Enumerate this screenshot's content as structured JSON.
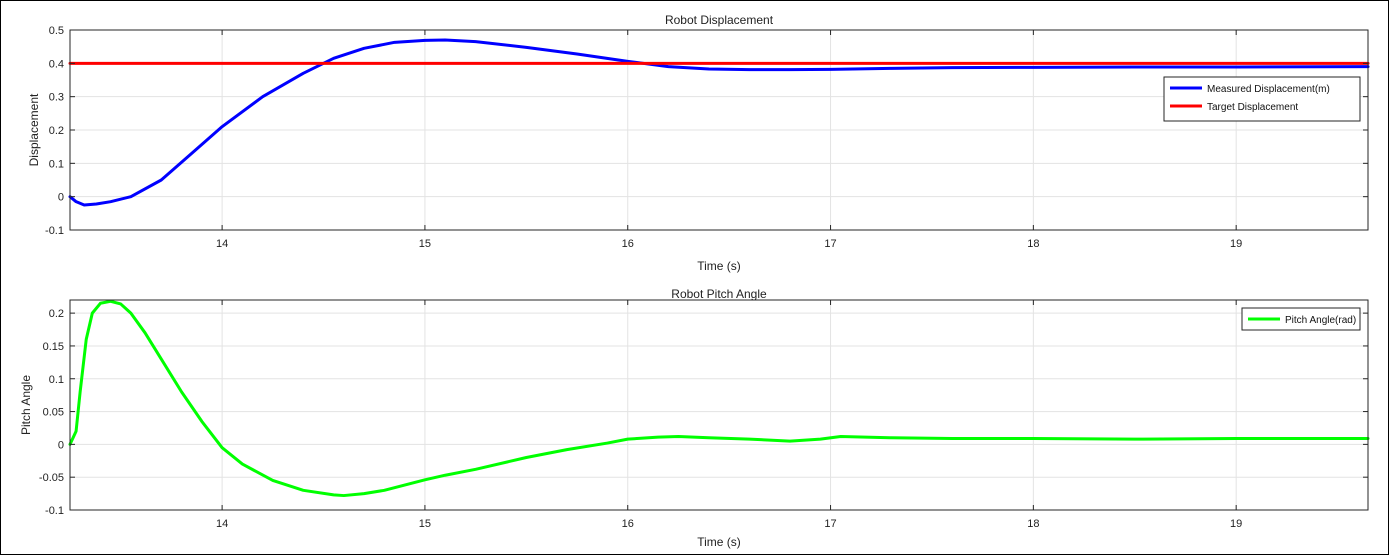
{
  "chart_data": [
    {
      "type": "line",
      "title": "Robot Displacement",
      "xlabel": "Time (s)",
      "ylabel": "Displacement",
      "xlim": [
        13.25,
        19.65
      ],
      "ylim": [
        -0.1,
        0.5
      ],
      "xticks": [
        14,
        15,
        16,
        17,
        18,
        19
      ],
      "xtick_labels": [
        "14",
        "15",
        "16",
        "17",
        "18",
        "19"
      ],
      "yticks": [
        -0.1,
        0,
        0.1,
        0.2,
        0.3,
        0.4,
        0.5
      ],
      "ytick_labels": [
        "-0.1",
        "0",
        "0.1",
        "0.2",
        "0.3",
        "0.4",
        "0.5"
      ],
      "grid": true,
      "legend_position": "top-right",
      "series": [
        {
          "name": "Measured Displacement(m)",
          "color": "#0000ff",
          "x": [
            13.25,
            13.28,
            13.32,
            13.38,
            13.45,
            13.55,
            13.7,
            13.85,
            14.0,
            14.2,
            14.4,
            14.55,
            14.7,
            14.85,
            15.0,
            15.1,
            15.25,
            15.5,
            15.75,
            16.0,
            16.2,
            16.4,
            16.6,
            16.8,
            17.0,
            17.3,
            17.6,
            18.0,
            18.5,
            19.0,
            19.65
          ],
          "y": [
            0.0,
            -0.015,
            -0.025,
            -0.022,
            -0.015,
            0.0,
            0.05,
            0.13,
            0.21,
            0.3,
            0.37,
            0.415,
            0.445,
            0.463,
            0.469,
            0.47,
            0.465,
            0.448,
            0.428,
            0.406,
            0.39,
            0.383,
            0.381,
            0.381,
            0.382,
            0.385,
            0.387,
            0.388,
            0.389,
            0.389,
            0.39
          ]
        },
        {
          "name": "Target Displacement",
          "color": "#ff0000",
          "x": [
            13.25,
            19.65
          ],
          "y": [
            0.4,
            0.4
          ]
        }
      ]
    },
    {
      "type": "line",
      "title": "Robot Pitch Angle",
      "xlabel": "Time (s)",
      "ylabel": "Pitch Angle",
      "xlim": [
        13.25,
        19.65
      ],
      "ylim": [
        -0.1,
        0.22
      ],
      "xticks": [
        14,
        15,
        16,
        17,
        18,
        19
      ],
      "xtick_labels": [
        "14",
        "15",
        "16",
        "17",
        "18",
        "19"
      ],
      "yticks": [
        -0.1,
        -0.05,
        0,
        0.05,
        0.1,
        0.15,
        0.2
      ],
      "ytick_labels": [
        "-0.1",
        "-0.05",
        "0",
        "0.05",
        "0.1",
        "0.15",
        "0.2"
      ],
      "grid": true,
      "legend_position": "top-right",
      "series": [
        {
          "name": "Pitch Angle(rad)",
          "color": "#00ff00",
          "x": [
            13.25,
            13.28,
            13.3,
            13.33,
            13.36,
            13.4,
            13.45,
            13.5,
            13.55,
            13.62,
            13.7,
            13.8,
            13.9,
            14.0,
            14.1,
            14.25,
            14.4,
            14.55,
            14.6,
            14.7,
            14.8,
            14.9,
            15.0,
            15.1,
            15.25,
            15.5,
            15.7,
            15.9,
            16.0,
            16.15,
            16.25,
            16.4,
            16.6,
            16.8,
            16.95,
            17.05,
            17.3,
            17.6,
            18.0,
            18.5,
            19.0,
            19.65
          ],
          "y": [
            0.0,
            0.02,
            0.08,
            0.16,
            0.2,
            0.215,
            0.218,
            0.214,
            0.2,
            0.17,
            0.13,
            0.08,
            0.035,
            -0.005,
            -0.03,
            -0.055,
            -0.07,
            -0.077,
            -0.078,
            -0.075,
            -0.07,
            -0.062,
            -0.054,
            -0.047,
            -0.038,
            -0.02,
            -0.008,
            0.002,
            0.008,
            0.011,
            0.012,
            0.01,
            0.008,
            0.005,
            0.008,
            0.012,
            0.01,
            0.009,
            0.009,
            0.008,
            0.009,
            0.009
          ]
        }
      ]
    }
  ]
}
